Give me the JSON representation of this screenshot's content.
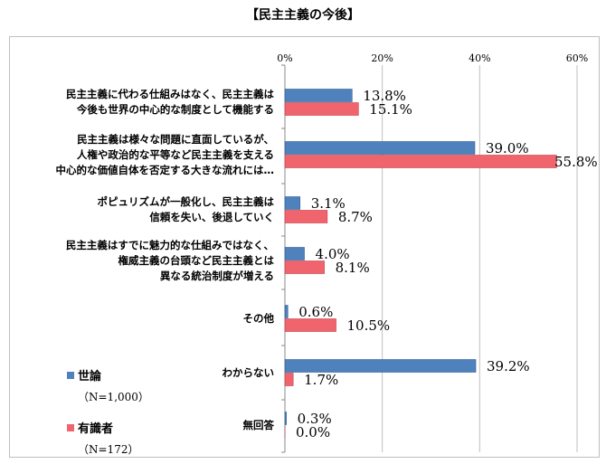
{
  "chart_data": {
    "type": "bar",
    "orientation": "horizontal",
    "title": "【民主主義の今後】",
    "xlim": [
      0,
      60
    ],
    "ticks": [
      "0%",
      "20%",
      "40%",
      "60%"
    ],
    "tick_values": [
      0,
      20,
      40,
      60
    ],
    "categories": [
      [
        "民主主義に代わる仕組みはなく、民主主義は",
        "今後も世界の中心的な制度として機能する"
      ],
      [
        "民主主義は様々な問題に直面しているが、",
        "人権や政治的な平等など民主主義を支える",
        "中心的な価値自体を否定する大きな流れには…"
      ],
      [
        "ポピュリズムが一般化し、民主主義は",
        "信頼を失い、後退していく"
      ],
      [
        "民主主義はすでに魅力的な仕組みではなく、",
        "権威主義の台頭など民主主義とは",
        "異なる統治制度が増える"
      ],
      [
        "その他"
      ],
      [
        "わからない"
      ],
      [
        "無回答"
      ]
    ],
    "series": [
      {
        "name": "世論",
        "sub": "（N=1,000）",
        "color": "#4f81bd",
        "values": [
          13.8,
          39.0,
          3.1,
          4.0,
          0.6,
          39.2,
          0.3
        ],
        "labels": [
          "13.8%",
          "39.0%",
          "3.1%",
          "4.0%",
          "0.6%",
          "39.2%",
          "0.3%"
        ]
      },
      {
        "name": "有識者",
        "sub": "（N=172）",
        "color": "#f0646e",
        "values": [
          15.1,
          55.8,
          8.7,
          8.1,
          10.5,
          1.7,
          0.0
        ],
        "labels": [
          "15.1%",
          "55.8%",
          "8.7%",
          "8.1%",
          "10.5%",
          "1.7%",
          "0.0%"
        ]
      }
    ],
    "legend_position": "bottom-left",
    "grid": true
  }
}
